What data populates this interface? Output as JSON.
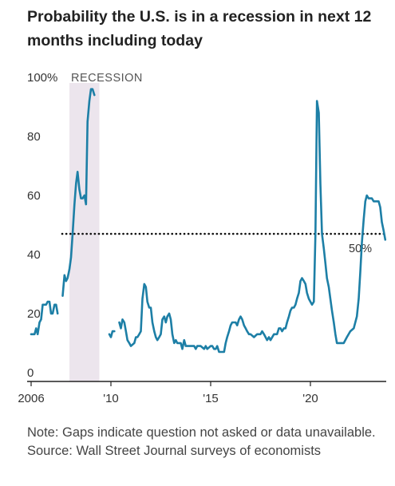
{
  "title": "Probability the U.S. is in a recession in next 12 months including today",
  "note": "Note: Gaps indicate question not asked or data unavailable.",
  "source": "Source: Wall Street Journal surveys of economists",
  "colors": {
    "line": "#1d7fa6",
    "recession": "#ece5ed",
    "axis": "#222222",
    "text": "#333333"
  },
  "chart_data": {
    "type": "line",
    "title": "Probability the U.S. is in a recession in next 12 months including today",
    "xlabel": "",
    "ylabel": "",
    "xlim": [
      2005.8,
      2023.8
    ],
    "ylim": [
      0,
      100
    ],
    "y_ticks": [
      {
        "value": 100,
        "label": "100%"
      },
      {
        "value": 80,
        "label": "80"
      },
      {
        "value": 60,
        "label": "60"
      },
      {
        "value": 40,
        "label": "40"
      },
      {
        "value": 20,
        "label": "20"
      },
      {
        "value": 0,
        "label": "0"
      }
    ],
    "x_ticks": [
      {
        "value": 2006,
        "label": "2006"
      },
      {
        "value": 2010,
        "label": "'10"
      },
      {
        "value": 2015,
        "label": "'15"
      },
      {
        "value": 2020,
        "label": "'20"
      }
    ],
    "recession": {
      "start": 2007.92,
      "end": 2009.42,
      "label": "RECESSION"
    },
    "threshold": {
      "value": 50,
      "label": "50%"
    },
    "grid": false,
    "legend": "none",
    "series": [
      {
        "segments": [
          [
            [
              2006.0,
              16
            ],
            [
              2006.17,
              16
            ],
            [
              2006.25,
              18
            ],
            [
              2006.33,
              16
            ],
            [
              2006.42,
              20
            ],
            [
              2006.5,
              21
            ],
            [
              2006.58,
              26
            ],
            [
              2006.67,
              26
            ],
            [
              2006.75,
              26
            ],
            [
              2006.83,
              27
            ],
            [
              2006.92,
              27
            ],
            [
              2007.0,
              23
            ],
            [
              2007.08,
              23
            ],
            [
              2007.17,
              26
            ],
            [
              2007.25,
              26
            ],
            [
              2007.33,
              23
            ]
          ],
          [
            [
              2007.58,
              29
            ],
            [
              2007.67,
              36
            ],
            [
              2007.75,
              34
            ],
            [
              2007.83,
              35
            ],
            [
              2007.92,
              38
            ],
            [
              2008.0,
              42
            ],
            [
              2008.08,
              50
            ],
            [
              2008.17,
              60
            ],
            [
              2008.25,
              67
            ],
            [
              2008.33,
              71
            ],
            [
              2008.42,
              65
            ],
            [
              2008.5,
              62
            ],
            [
              2008.58,
              62
            ],
            [
              2008.67,
              63
            ],
            [
              2008.75,
              60
            ],
            [
              2008.83,
              88
            ],
            [
              2008.92,
              95
            ],
            [
              2009.0,
              99
            ],
            [
              2009.08,
              99
            ],
            [
              2009.17,
              97
            ]
          ],
          [
            [
              2009.92,
              16
            ],
            [
              2010.0,
              15
            ],
            [
              2010.08,
              17
            ],
            [
              2010.17,
              17
            ]
          ],
          [
            [
              2010.42,
              20
            ],
            [
              2010.5,
              18
            ],
            [
              2010.58,
              21
            ],
            [
              2010.67,
              20
            ],
            [
              2010.75,
              17
            ],
            [
              2010.83,
              14
            ],
            [
              2010.92,
              13
            ],
            [
              2011.0,
              12
            ],
            [
              2011.17,
              13
            ],
            [
              2011.25,
              15
            ],
            [
              2011.33,
              15
            ],
            [
              2011.42,
              16
            ],
            [
              2011.5,
              17
            ],
            [
              2011.58,
              28
            ],
            [
              2011.67,
              33
            ],
            [
              2011.75,
              32
            ],
            [
              2011.83,
              27
            ],
            [
              2011.92,
              25
            ],
            [
              2012.0,
              25
            ],
            [
              2012.08,
              20
            ],
            [
              2012.17,
              17
            ],
            [
              2012.25,
              15
            ],
            [
              2012.33,
              14
            ],
            [
              2012.42,
              15
            ],
            [
              2012.5,
              16
            ],
            [
              2012.58,
              21
            ],
            [
              2012.67,
              22
            ],
            [
              2012.75,
              20
            ],
            [
              2012.83,
              22
            ],
            [
              2012.92,
              23
            ],
            [
              2013.0,
              21
            ],
            [
              2013.08,
              16
            ],
            [
              2013.17,
              13
            ],
            [
              2013.25,
              14
            ],
            [
              2013.33,
              13
            ],
            [
              2013.42,
              13
            ],
            [
              2013.5,
              13
            ],
            [
              2013.58,
              11
            ],
            [
              2013.67,
              14
            ],
            [
              2013.75,
              12
            ],
            [
              2013.83,
              12
            ],
            [
              2013.92,
              12
            ],
            [
              2014.0,
              12
            ],
            [
              2014.17,
              12
            ],
            [
              2014.25,
              11
            ],
            [
              2014.33,
              12
            ],
            [
              2014.5,
              12
            ],
            [
              2014.67,
              11
            ],
            [
              2014.75,
              12
            ],
            [
              2014.83,
              11
            ],
            [
              2015.0,
              12
            ],
            [
              2015.08,
              12
            ],
            [
              2015.17,
              11
            ],
            [
              2015.25,
              11
            ],
            [
              2015.33,
              12
            ],
            [
              2015.42,
              10
            ],
            [
              2015.5,
              10
            ],
            [
              2015.58,
              10
            ],
            [
              2015.67,
              10
            ],
            [
              2015.75,
              13
            ],
            [
              2015.83,
              15
            ],
            [
              2015.92,
              17
            ],
            [
              2016.0,
              19
            ],
            [
              2016.08,
              20
            ],
            [
              2016.17,
              20
            ],
            [
              2016.25,
              20
            ],
            [
              2016.33,
              19
            ],
            [
              2016.42,
              21
            ],
            [
              2016.5,
              22
            ],
            [
              2016.58,
              21
            ],
            [
              2016.67,
              19
            ],
            [
              2016.75,
              18
            ],
            [
              2016.83,
              17
            ],
            [
              2016.92,
              16
            ],
            [
              2017.0,
              16
            ],
            [
              2017.17,
              15
            ],
            [
              2017.33,
              16
            ],
            [
              2017.5,
              16
            ],
            [
              2017.58,
              17
            ],
            [
              2017.67,
              16
            ],
            [
              2017.75,
              15
            ],
            [
              2017.83,
              14
            ],
            [
              2017.92,
              15
            ],
            [
              2018.0,
              14
            ],
            [
              2018.17,
              16
            ],
            [
              2018.33,
              16
            ],
            [
              2018.42,
              18
            ],
            [
              2018.5,
              18
            ],
            [
              2018.58,
              17
            ],
            [
              2018.67,
              18
            ],
            [
              2018.75,
              18
            ],
            [
              2018.83,
              20
            ],
            [
              2018.92,
              22
            ],
            [
              2019.0,
              24
            ],
            [
              2019.08,
              25
            ],
            [
              2019.17,
              25
            ],
            [
              2019.25,
              26
            ],
            [
              2019.33,
              28
            ],
            [
              2019.42,
              30
            ],
            [
              2019.5,
              34
            ],
            [
              2019.58,
              35
            ],
            [
              2019.67,
              34
            ],
            [
              2019.75,
              33
            ],
            [
              2019.83,
              30
            ],
            [
              2019.92,
              28
            ],
            [
              2020.0,
              27
            ],
            [
              2020.08,
              26
            ],
            [
              2020.17,
              27
            ],
            [
              2020.25,
              50
            ],
            [
              2020.33,
              95
            ],
            [
              2020.42,
              91
            ],
            [
              2020.5,
              67
            ],
            [
              2020.58,
              50
            ],
            [
              2020.67,
              45
            ],
            [
              2020.75,
              40
            ],
            [
              2020.83,
              35
            ],
            [
              2020.92,
              32
            ],
            [
              2021.0,
              28
            ],
            [
              2021.08,
              24
            ],
            [
              2021.17,
              20
            ],
            [
              2021.25,
              16
            ],
            [
              2021.33,
              13
            ],
            [
              2021.5,
              13
            ],
            [
              2021.67,
              13
            ],
            [
              2021.83,
              15
            ],
            [
              2022.0,
              17
            ],
            [
              2022.17,
              18
            ],
            [
              2022.33,
              22
            ],
            [
              2022.42,
              28
            ],
            [
              2022.5,
              37
            ],
            [
              2022.58,
              47
            ],
            [
              2022.67,
              55
            ],
            [
              2022.75,
              61
            ],
            [
              2022.83,
              63
            ],
            [
              2022.92,
              62
            ],
            [
              2023.08,
              62
            ],
            [
              2023.17,
              61
            ],
            [
              2023.33,
              61
            ],
            [
              2023.42,
              61
            ],
            [
              2023.5,
              59
            ],
            [
              2023.58,
              54
            ],
            [
              2023.67,
              51
            ],
            [
              2023.75,
              48
            ]
          ]
        ]
      }
    ]
  }
}
